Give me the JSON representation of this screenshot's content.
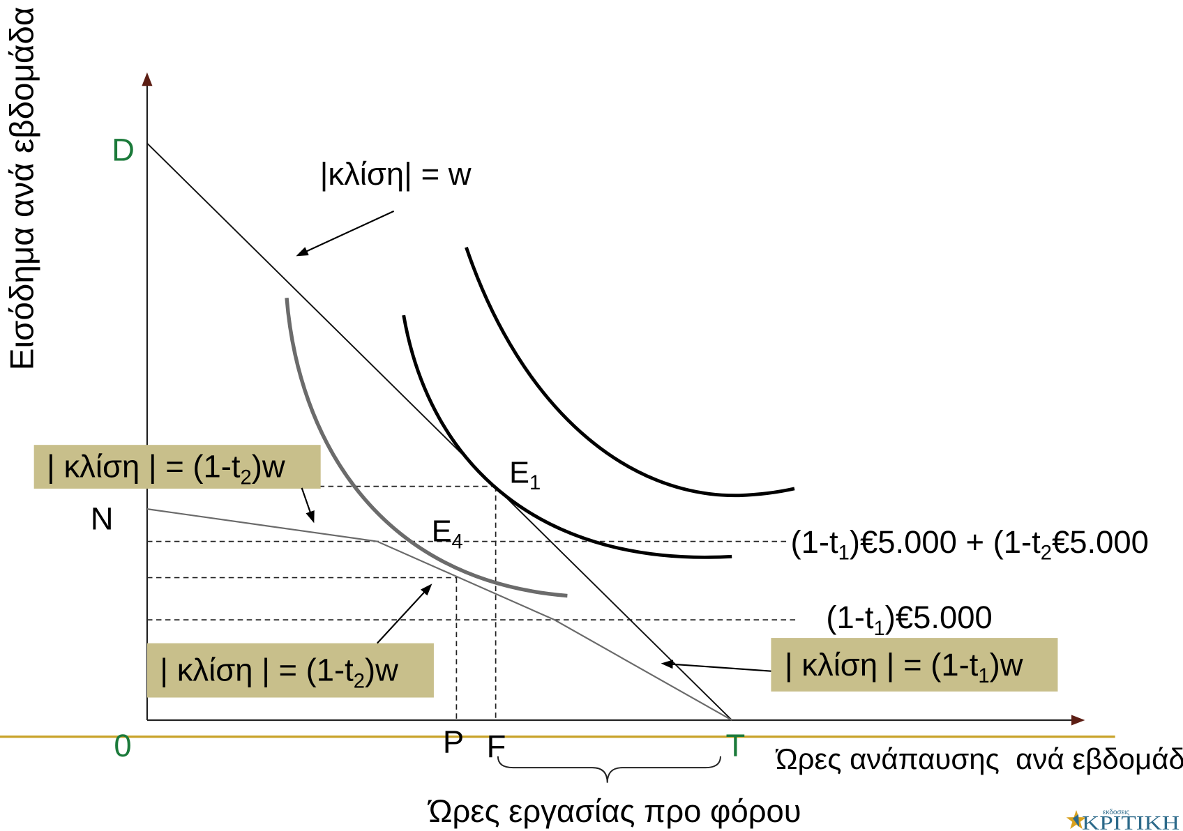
{
  "axes": {
    "y_label": "Εισόδημα ανά εβδομάδα",
    "x_label": "Ώρες ανάπαυσης  ανά εβδομάδα",
    "work_hours_label": "Ώρες εργασίας προ φόρου"
  },
  "points": {
    "D": "D",
    "N": "N",
    "origin": "0",
    "P": "P",
    "F": "F",
    "T": "T"
  },
  "equilibria": {
    "E1": {
      "letter": "E",
      "sub": "1"
    },
    "E4": {
      "letter": "E",
      "sub": "4"
    }
  },
  "slopes": {
    "pretax": "|κλίση| = w",
    "box_upper_left": {
      "pre": "| κλίση | = (1-t",
      "sub": "2",
      "post": ")w"
    },
    "box_lower_left": {
      "pre": "| κλίση | = (1-t",
      "sub": "2",
      "post": ")w"
    },
    "box_right": {
      "pre": "| κλίση | = (1-t",
      "sub": "1",
      "post": ")w"
    }
  },
  "income_levels": {
    "upper": {
      "a": "(1-t",
      "a_sub": "1",
      "b": ")€5.000 + (1-t",
      "b_sub": "2",
      "c": "€5.000"
    },
    "lower": {
      "a": "(1-t",
      "a_sub": "1",
      "b": ")€5.000"
    }
  },
  "logo": {
    "tagline": "εκδοσεις",
    "name": "ΚΡΙΤΙΚΗ"
  },
  "colors": {
    "point_label": "#1b7a3a",
    "label_box": "#c8bf8b",
    "slide_rule": "#c8a227",
    "axis_arrow": "#5c1e14",
    "logo_gold": "#d9a21f",
    "logo_blue": "#2d6a8a"
  }
}
